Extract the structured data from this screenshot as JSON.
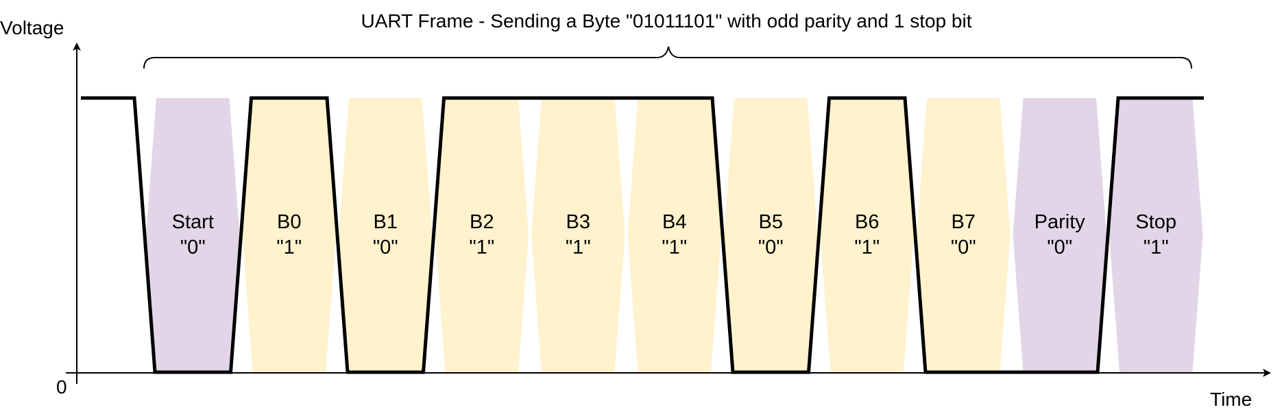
{
  "title": "UART Frame - Sending a Byte \"01011101\" with odd parity and 1 stop bit",
  "axes": {
    "y_label": "Voltage",
    "x_label": "Time",
    "origin_label": "0"
  },
  "colors": {
    "control_bit_fill": "#e1d5e7",
    "data_bit_fill": "#fff2cc",
    "signal": "#000000"
  },
  "idle_level": 1,
  "bits": [
    {
      "name": "Start",
      "value": "\"0\"",
      "level": 0,
      "kind": "control"
    },
    {
      "name": "B0",
      "value": "\"1\"",
      "level": 1,
      "kind": "data"
    },
    {
      "name": "B1",
      "value": "\"0\"",
      "level": 0,
      "kind": "data"
    },
    {
      "name": "B2",
      "value": "\"1\"",
      "level": 1,
      "kind": "data"
    },
    {
      "name": "B3",
      "value": "\"1\"",
      "level": 1,
      "kind": "data"
    },
    {
      "name": "B4",
      "value": "\"1\"",
      "level": 1,
      "kind": "data"
    },
    {
      "name": "B5",
      "value": "\"0\"",
      "level": 0,
      "kind": "data"
    },
    {
      "name": "B6",
      "value": "\"1\"",
      "level": 1,
      "kind": "data"
    },
    {
      "name": "B7",
      "value": "\"0\"",
      "level": 0,
      "kind": "data"
    },
    {
      "name": "Parity",
      "value": "\"0\"",
      "level": 0,
      "kind": "control"
    },
    {
      "name": "Stop",
      "value": "\"1\"",
      "level": 1,
      "kind": "control"
    }
  ]
}
